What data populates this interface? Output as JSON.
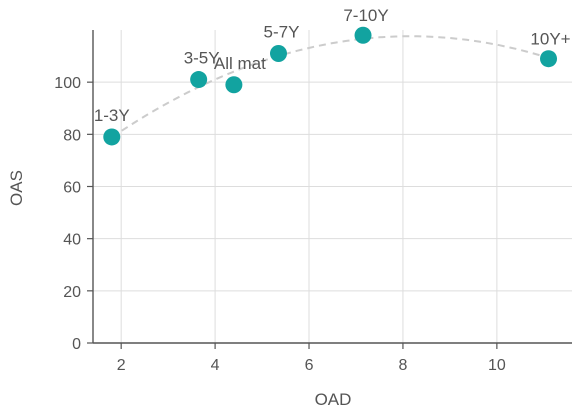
{
  "chart_data": {
    "type": "scatter",
    "title": "",
    "xlabel": "OAD",
    "ylabel": "OAS",
    "xlim": [
      1.4,
      11.6
    ],
    "ylim": [
      0,
      120
    ],
    "xticks": [
      2,
      4,
      6,
      8,
      10
    ],
    "yticks": [
      0,
      20,
      40,
      60,
      80,
      100
    ],
    "grid": true,
    "marker_color": "#12a3a0",
    "trendline": {
      "style": "dashed",
      "color": "#cccccc",
      "fit": "quadratic"
    },
    "points": [
      {
        "label": "1-3Y",
        "x": 1.8,
        "y": 79
      },
      {
        "label": "3-5Y",
        "x": 3.65,
        "y": 101
      },
      {
        "label": "All mat",
        "x": 4.4,
        "y": 99
      },
      {
        "label": "5-7Y",
        "x": 5.35,
        "y": 111
      },
      {
        "label": "7-10Y",
        "x": 7.15,
        "y": 118
      },
      {
        "label": "10Y+",
        "x": 11.1,
        "y": 109
      }
    ]
  }
}
